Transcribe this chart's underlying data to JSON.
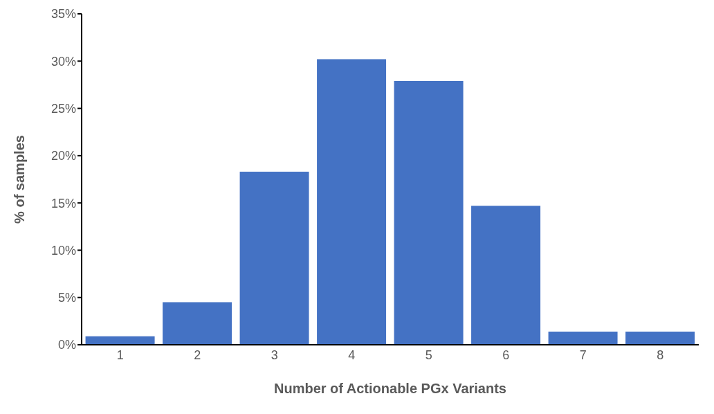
{
  "chart_data": {
    "type": "bar",
    "xlabel": "Number of Actionable PGx Variants",
    "ylabel": "% of samples",
    "categories": [
      "1",
      "2",
      "3",
      "4",
      "5",
      "6",
      "7",
      "8"
    ],
    "values": [
      0.9,
      4.5,
      18.3,
      30.2,
      27.9,
      14.7,
      1.4,
      1.4
    ],
    "color": "#4472c4",
    "ylim": [
      0,
      35
    ],
    "yticks": [
      {
        "value": 0,
        "label": "0%"
      },
      {
        "value": 5,
        "label": "5%"
      },
      {
        "value": 10,
        "label": "10%"
      },
      {
        "value": 15,
        "label": "15%"
      },
      {
        "value": 20,
        "label": "20%"
      },
      {
        "value": 25,
        "label": "25%"
      },
      {
        "value": 30,
        "label": "30%"
      },
      {
        "value": 35,
        "label": "35%"
      }
    ],
    "grid": false,
    "legend": false
  }
}
